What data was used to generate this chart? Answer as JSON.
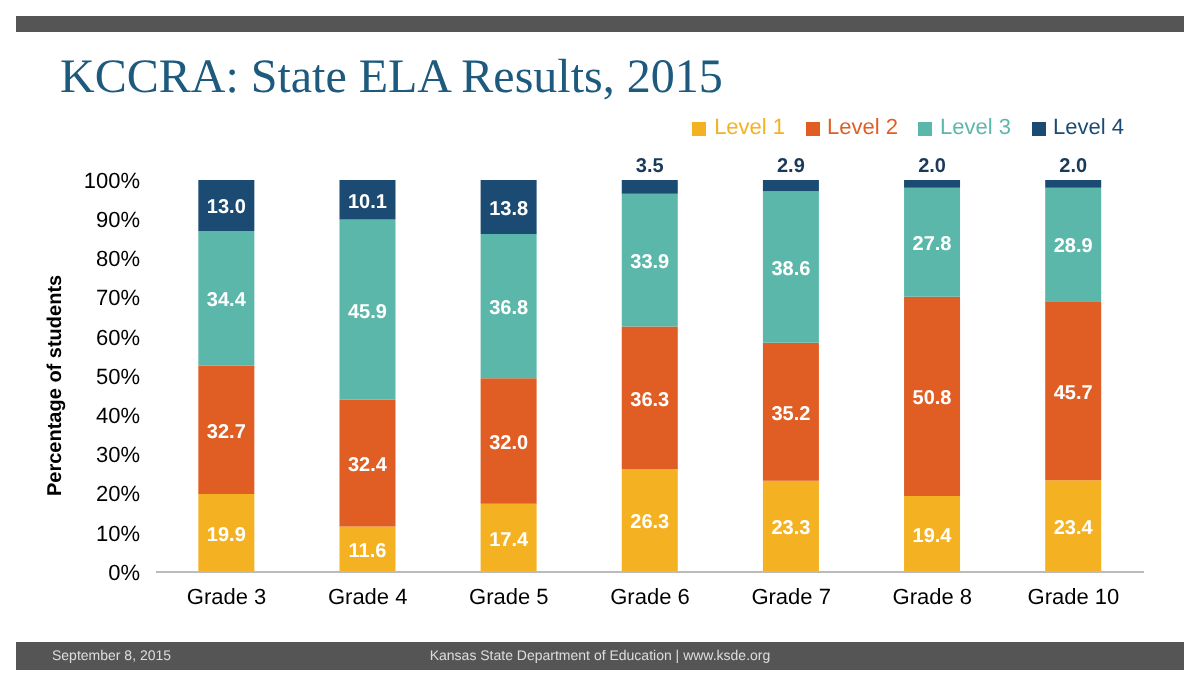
{
  "chart_data": {
    "type": "bar",
    "title": "KCCRA: State ELA Results, 2015",
    "ylabel": "Percentage of students",
    "categories": [
      "Grade 3",
      "Grade 4",
      "Grade 5",
      "Grade 6",
      "Grade 7",
      "Grade 8",
      "Grade 10"
    ],
    "stacked": true,
    "series": [
      {
        "name": "Level 1",
        "color": "#f4b122",
        "values": [
          19.9,
          11.6,
          17.4,
          26.3,
          23.3,
          19.4,
          23.4
        ],
        "value_labels": [
          "19.9",
          "11.6",
          "17.4",
          "26.3",
          "23.3",
          "19.4",
          "23.4"
        ]
      },
      {
        "name": "Level 2",
        "color": "#e05d24",
        "values": [
          32.7,
          32.4,
          32.0,
          36.3,
          35.2,
          50.8,
          45.7
        ],
        "value_labels": [
          "32.7",
          "32.4",
          "32.0",
          "36.3",
          "35.2",
          "50.8",
          "45.7"
        ]
      },
      {
        "name": "Level 3",
        "color": "#5cb7ab",
        "values": [
          34.4,
          45.9,
          36.8,
          33.9,
          38.6,
          27.8,
          28.9
        ],
        "value_labels": [
          "34.4",
          "45.9",
          "36.8",
          "33.9",
          "38.6",
          "27.8",
          "28.9"
        ]
      },
      {
        "name": "Level 4",
        "color": "#1b4a72",
        "values": [
          13.0,
          10.1,
          13.8,
          3.5,
          2.9,
          2.0,
          2.0
        ],
        "value_labels": [
          "13.0",
          "10.1",
          "13.8",
          "3.5",
          "2.9",
          "2.0",
          "2.0"
        ]
      }
    ],
    "ylim": [
      0,
      100
    ],
    "yticks": [
      {
        "value": 0,
        "label": "0%"
      },
      {
        "value": 10,
        "label": "10%"
      },
      {
        "value": 20,
        "label": "20%"
      },
      {
        "value": 30,
        "label": "30%"
      },
      {
        "value": 40,
        "label": "40%"
      },
      {
        "value": 50,
        "label": "50%"
      },
      {
        "value": 60,
        "label": "60%"
      },
      {
        "value": 70,
        "label": "70%"
      },
      {
        "value": 80,
        "label": "80%"
      },
      {
        "value": 90,
        "label": "90%"
      },
      {
        "value": 100,
        "label": "100%"
      }
    ],
    "legend": "top right",
    "annotations": [
      "September 8, 2015",
      "Kansas State Department of Education | www.ksde.org"
    ]
  }
}
